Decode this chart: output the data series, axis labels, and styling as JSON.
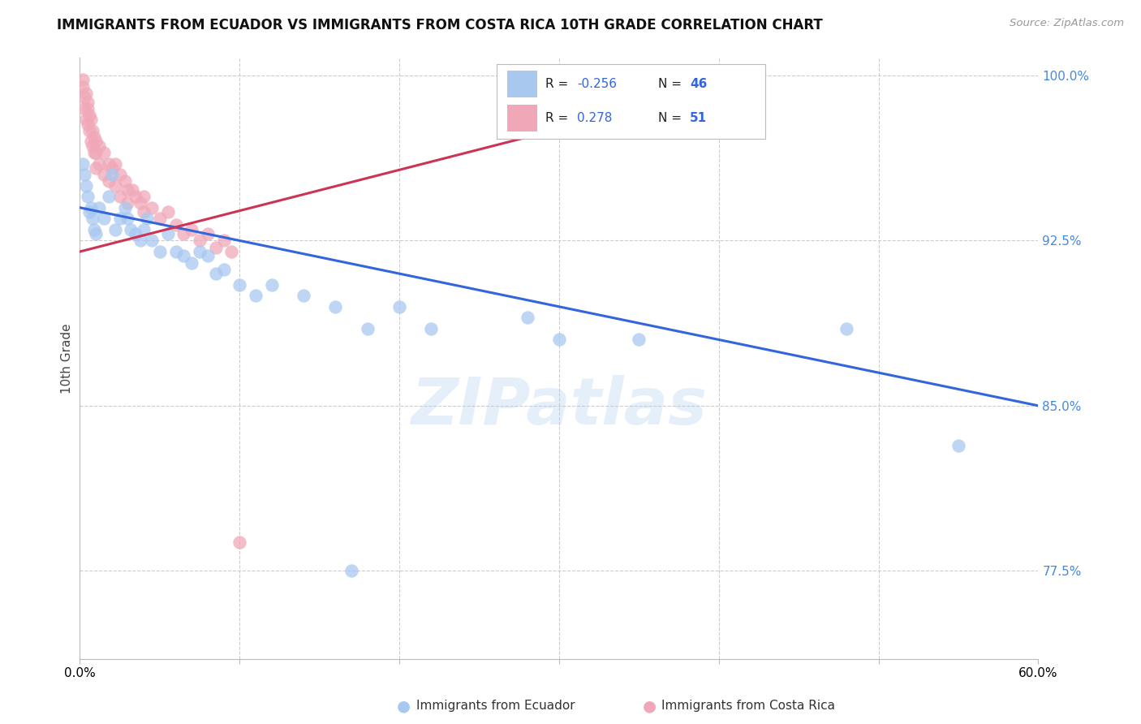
{
  "title": "IMMIGRANTS FROM ECUADOR VS IMMIGRANTS FROM COSTA RICA 10TH GRADE CORRELATION CHART",
  "source": "Source: ZipAtlas.com",
  "xlabel_bottom": "Immigrants from Ecuador",
  "xlabel_bottom2": "Immigrants from Costa Rica",
  "ylabel": "10th Grade",
  "watermark": "ZIPatlas",
  "xlim": [
    0.0,
    0.6
  ],
  "ylim": [
    0.735,
    1.008
  ],
  "yticks_right": [
    0.775,
    0.85,
    0.925,
    1.0
  ],
  "ytick_labels_right": [
    "77.5%",
    "85.0%",
    "92.5%",
    "100.0%"
  ],
  "legend_R_blue": "-0.256",
  "legend_N_blue": "46",
  "legend_R_pink": "0.278",
  "legend_N_pink": "51",
  "blue_color": "#A8C8F0",
  "pink_color": "#F0A8B8",
  "blue_line_color": "#3366DD",
  "pink_line_color": "#CC3355",
  "ecuador_scatter_x": [
    0.002,
    0.003,
    0.004,
    0.005,
    0.006,
    0.007,
    0.008,
    0.009,
    0.01,
    0.012,
    0.015,
    0.018,
    0.02,
    0.022,
    0.025,
    0.028,
    0.03,
    0.032,
    0.035,
    0.038,
    0.04,
    0.042,
    0.045,
    0.05,
    0.055,
    0.06,
    0.065,
    0.07,
    0.075,
    0.08,
    0.085,
    0.09,
    0.1,
    0.11,
    0.12,
    0.14,
    0.16,
    0.18,
    0.2,
    0.22,
    0.28,
    0.3,
    0.35,
    0.48,
    0.55,
    0.17
  ],
  "ecuador_scatter_y": [
    0.96,
    0.955,
    0.95,
    0.945,
    0.938,
    0.94,
    0.935,
    0.93,
    0.928,
    0.94,
    0.935,
    0.945,
    0.955,
    0.93,
    0.935,
    0.94,
    0.935,
    0.93,
    0.928,
    0.925,
    0.93,
    0.935,
    0.925,
    0.92,
    0.928,
    0.92,
    0.918,
    0.915,
    0.92,
    0.918,
    0.91,
    0.912,
    0.905,
    0.9,
    0.905,
    0.9,
    0.895,
    0.885,
    0.895,
    0.885,
    0.89,
    0.88,
    0.88,
    0.885,
    0.832,
    0.775
  ],
  "costarica_scatter_x": [
    0.002,
    0.002,
    0.003,
    0.003,
    0.004,
    0.004,
    0.005,
    0.005,
    0.005,
    0.006,
    0.006,
    0.007,
    0.007,
    0.008,
    0.008,
    0.009,
    0.009,
    0.01,
    0.01,
    0.01,
    0.012,
    0.012,
    0.015,
    0.015,
    0.018,
    0.018,
    0.02,
    0.022,
    0.022,
    0.025,
    0.025,
    0.028,
    0.03,
    0.03,
    0.033,
    0.035,
    0.038,
    0.04,
    0.04,
    0.045,
    0.05,
    0.055,
    0.06,
    0.065,
    0.07,
    0.075,
    0.08,
    0.085,
    0.09,
    0.095,
    0.1
  ],
  "costarica_scatter_y": [
    0.998,
    0.995,
    0.99,
    0.985,
    0.992,
    0.98,
    0.988,
    0.985,
    0.978,
    0.982,
    0.975,
    0.98,
    0.97,
    0.975,
    0.968,
    0.972,
    0.965,
    0.97,
    0.965,
    0.958,
    0.968,
    0.96,
    0.965,
    0.955,
    0.96,
    0.952,
    0.958,
    0.96,
    0.95,
    0.955,
    0.945,
    0.952,
    0.948,
    0.942,
    0.948,
    0.945,
    0.942,
    0.945,
    0.938,
    0.94,
    0.935,
    0.938,
    0.932,
    0.928,
    0.93,
    0.925,
    0.928,
    0.922,
    0.925,
    0.92,
    0.788
  ],
  "blue_trend_x": [
    0.0,
    0.6
  ],
  "blue_trend_y": [
    0.94,
    0.85
  ],
  "pink_trend_x": [
    0.0,
    0.42
  ],
  "pink_trend_y": [
    0.92,
    0.998
  ],
  "background_color": "#FFFFFF",
  "grid_color": "#CCCCCC"
}
